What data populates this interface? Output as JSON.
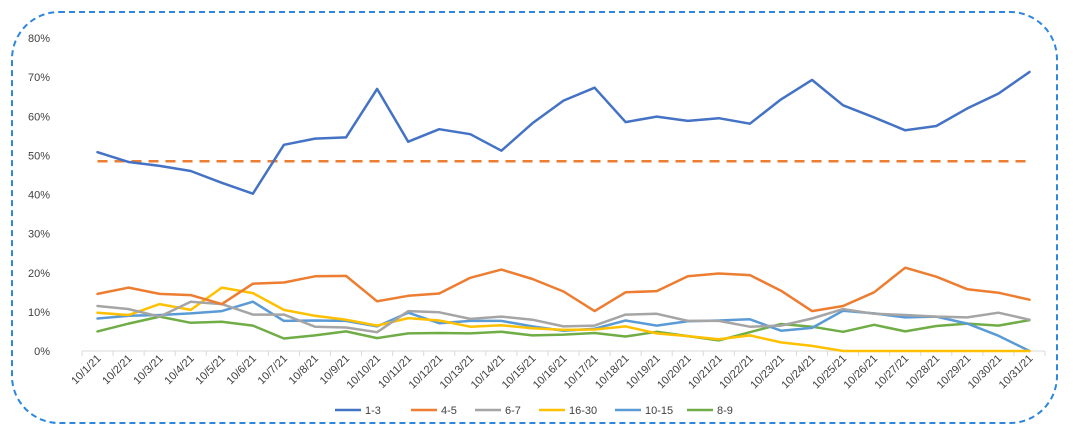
{
  "chart_data": {
    "type": "line",
    "title": "",
    "xlabel": "",
    "ylabel": "",
    "ylim": [
      0,
      80
    ],
    "yticks": [
      0,
      10,
      20,
      30,
      40,
      50,
      60,
      70,
      80
    ],
    "ytick_labels": [
      "0%",
      "10%",
      "20%",
      "30%",
      "40%",
      "50%",
      "60%",
      "70%",
      "80%"
    ],
    "grid": false,
    "legend_position": "bottom",
    "categories": [
      "10/1/21",
      "10/2/21",
      "10/3/21",
      "10/4/21",
      "10/5/21",
      "10/6/21",
      "10/7/21",
      "10/8/21",
      "10/9/21",
      "10/10/21",
      "10/11/21",
      "10/12/21",
      "10/13/21",
      "10/14/21",
      "10/15/21",
      "10/16/21",
      "10/17/21",
      "10/18/21",
      "10/19/21",
      "10/20/21",
      "10/21/21",
      "10/22/21",
      "10/23/21",
      "10/24/21",
      "10/25/21",
      "10/26/21",
      "10/27/21",
      "10/28/21",
      "10/29/21",
      "10/30/21",
      "10/31/21"
    ],
    "reference_line": {
      "value": 48.5,
      "color": "#ED7D31",
      "style": "dashed"
    },
    "series": [
      {
        "name": "1-3",
        "color": "#4472C4",
        "values": [
          50.8,
          48.3,
          47.3,
          46.0,
          43.0,
          40.2,
          52.7,
          54.3,
          54.6,
          67.0,
          53.5,
          56.7,
          55.4,
          51.2,
          58.2,
          64.0,
          67.3,
          58.5,
          59.9,
          58.8,
          59.5,
          58.1,
          64.3,
          69.3,
          62.8,
          59.7,
          56.4,
          57.5,
          62.0,
          65.8,
          71.3
        ]
      },
      {
        "name": "4-5",
        "color": "#ED7D31",
        "values": [
          14.6,
          16.2,
          14.6,
          14.3,
          12.0,
          17.2,
          17.5,
          19.1,
          19.2,
          12.7,
          14.1,
          14.7,
          18.7,
          20.8,
          18.4,
          15.2,
          10.2,
          15.0,
          15.3,
          19.1,
          19.8,
          19.4,
          15.4,
          10.2,
          11.5,
          15.0,
          21.3,
          19.0,
          15.8,
          14.9,
          13.1
        ]
      },
      {
        "name": "6-7",
        "color": "#A5A5A5",
        "values": [
          11.5,
          10.7,
          8.8,
          12.6,
          12.0,
          9.3,
          9.3,
          6.2,
          6.0,
          4.8,
          10.2,
          9.9,
          8.2,
          8.8,
          8.0,
          6.3,
          6.5,
          9.3,
          9.5,
          7.7,
          7.7,
          6.2,
          6.5,
          8.3,
          10.7,
          9.5,
          9.2,
          8.8,
          8.6,
          9.8,
          8.0
        ]
      },
      {
        "name": "16-30",
        "color": "#FFC000",
        "values": [
          9.8,
          9.2,
          12.0,
          10.5,
          16.2,
          14.8,
          10.5,
          9.0,
          8.0,
          6.5,
          8.4,
          7.8,
          6.2,
          6.6,
          5.8,
          5.4,
          5.5,
          6.3,
          4.5,
          3.8,
          3.0,
          4.0,
          2.2,
          1.3,
          0.0,
          0.0,
          0.0,
          0.0,
          0.0,
          0.0,
          0.0
        ]
      },
      {
        "name": "10-15",
        "color": "#5B9BD5",
        "values": [
          8.3,
          9.0,
          9.2,
          9.6,
          10.2,
          12.6,
          7.7,
          7.8,
          7.7,
          6.3,
          9.8,
          7.1,
          7.7,
          7.7,
          6.3,
          5.2,
          5.7,
          7.8,
          6.5,
          7.6,
          7.8,
          8.1,
          5.2,
          5.9,
          10.3,
          9.6,
          8.6,
          8.8,
          7.0,
          3.9,
          0.0
        ]
      },
      {
        "name": "8-9",
        "color": "#70AD47",
        "values": [
          5.0,
          7.0,
          8.8,
          7.2,
          7.5,
          6.5,
          3.2,
          4.0,
          5.0,
          3.3,
          4.5,
          4.6,
          4.5,
          4.9,
          4.0,
          4.2,
          4.6,
          3.7,
          4.9,
          3.8,
          2.7,
          4.8,
          6.9,
          6.2,
          4.9,
          6.7,
          5.0,
          6.4,
          7.0,
          6.5,
          7.9
        ]
      }
    ]
  }
}
